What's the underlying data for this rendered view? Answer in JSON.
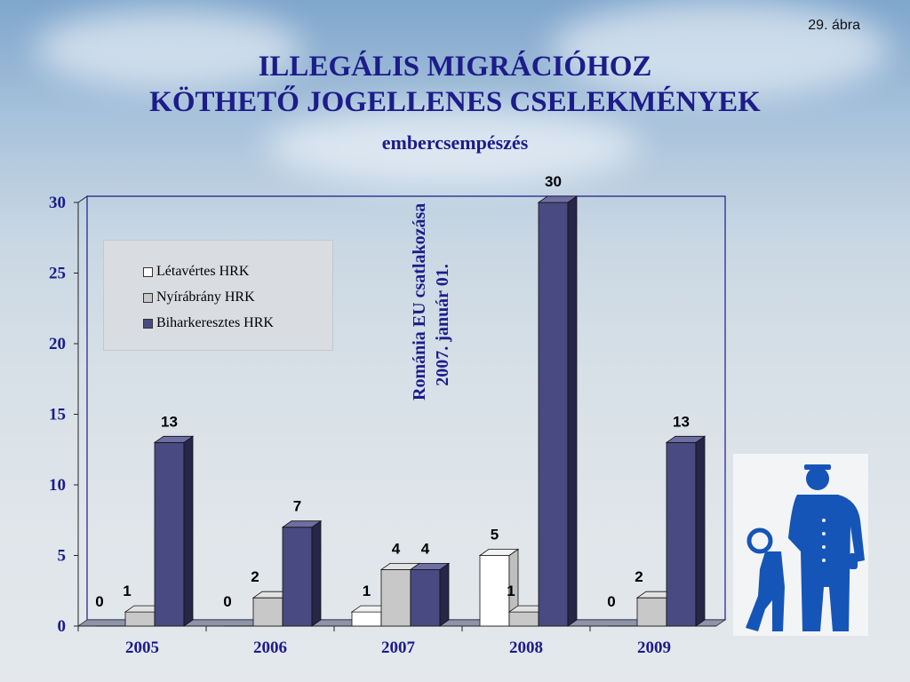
{
  "figure_number": "29. ábra",
  "title_line1": "ILLEGÁLIS MIGRÁCIÓHOZ",
  "title_line2": "KÖTHETŐ JOGELLENES CSELEKMÉNYEK",
  "subtitle": "embercsempészés",
  "annotation_line1": "Románia EU csatlakozása",
  "annotation_line2": "2007. január 01.",
  "colors": {
    "title": "#1c1c8a",
    "letavertes": "#ffffff",
    "nyirabrany": "#c8c8c8",
    "biharkeresztes": "#4a4a82",
    "icon": "#1555b8"
  },
  "icon": "police-officer-with-detainee-icon",
  "chart_data": {
    "type": "bar",
    "categories": [
      "2005",
      "2006",
      "2007",
      "2008",
      "2009"
    ],
    "series": [
      {
        "name": "Létavértes HRK",
        "values": [
          0,
          0,
          1,
          5,
          0
        ]
      },
      {
        "name": "Nyírábrány HRK",
        "values": [
          1,
          2,
          4,
          1,
          2
        ]
      },
      {
        "name": "Biharkeresztes HRK",
        "values": [
          13,
          7,
          4,
          30,
          13
        ]
      }
    ],
    "ylim": [
      0,
      30
    ],
    "yticks": [
      0,
      5,
      10,
      15,
      20,
      25,
      30
    ],
    "legend_position": "top-left",
    "grid": false
  }
}
